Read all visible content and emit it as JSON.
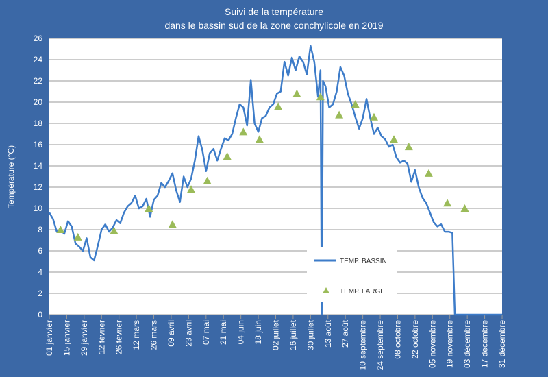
{
  "chart_data": {
    "type": "line",
    "title": "Suivi de la température",
    "subtitle": "dans le bassin sud de la zone conchylicole en 2019",
    "ylabel": "Température (°C)",
    "ylim": [
      0,
      26
    ],
    "yticks": [
      0,
      2,
      4,
      6,
      8,
      10,
      12,
      14,
      16,
      18,
      20,
      22,
      24,
      26
    ],
    "xlim": [
      0,
      364
    ],
    "xticks": [
      {
        "value": 0,
        "label": "01 janvier"
      },
      {
        "value": 14,
        "label": "15 janvier"
      },
      {
        "value": 28,
        "label": "29 janvier"
      },
      {
        "value": 42,
        "label": "12 février"
      },
      {
        "value": 56,
        "label": "26 février"
      },
      {
        "value": 70,
        "label": "12 mars"
      },
      {
        "value": 84,
        "label": "26 mars"
      },
      {
        "value": 98,
        "label": "09 avril"
      },
      {
        "value": 112,
        "label": "23 avril"
      },
      {
        "value": 126,
        "label": "07 mai"
      },
      {
        "value": 140,
        "label": "21 mai"
      },
      {
        "value": 154,
        "label": "04 juin"
      },
      {
        "value": 168,
        "label": "18 juin"
      },
      {
        "value": 182,
        "label": "02 juillet"
      },
      {
        "value": 196,
        "label": "16 juillet"
      },
      {
        "value": 210,
        "label": "30 juillet"
      },
      {
        "value": 224,
        "label": "13 août"
      },
      {
        "value": 238,
        "label": "27 août"
      },
      {
        "value": 252,
        "label": "10 septembre"
      },
      {
        "value": 266,
        "label": "24 septembre"
      },
      {
        "value": 280,
        "label": "08 octobre"
      },
      {
        "value": 294,
        "label": "22 octobre"
      },
      {
        "value": 308,
        "label": "05 novembre"
      },
      {
        "value": 322,
        "label": "19 novembre"
      },
      {
        "value": 336,
        "label": "03 décembre"
      },
      {
        "value": 350,
        "label": "17 décembre"
      },
      {
        "value": 364,
        "label": "31 décembre"
      }
    ],
    "grid": true,
    "legend": "bottom-center",
    "series": [
      {
        "name": "TEMP. BASSIN",
        "marker": "line",
        "color": "#3d7cc9",
        "x": [
          0,
          3,
          6,
          9,
          12,
          15,
          18,
          21,
          24,
          27,
          30,
          33,
          36,
          39,
          42,
          45,
          48,
          51,
          54,
          57,
          60,
          63,
          66,
          69,
          72,
          75,
          78,
          81,
          84,
          87,
          90,
          93,
          96,
          99,
          102,
          105,
          108,
          111,
          114,
          117,
          120,
          123,
          126,
          129,
          132,
          135,
          138,
          141,
          144,
          147,
          150,
          153,
          156,
          159,
          162,
          165,
          168,
          171,
          174,
          177,
          180,
          183,
          186,
          189,
          192,
          195,
          198,
          201,
          204,
          207,
          210,
          213,
          216,
          218,
          219,
          220,
          222,
          225,
          228,
          231,
          234,
          237,
          240,
          243,
          246,
          249,
          252,
          255,
          258,
          261,
          264,
          267,
          270,
          273,
          276,
          279,
          282,
          285,
          288,
          291,
          294,
          297,
          300,
          303,
          306,
          309,
          312,
          315,
          318,
          321,
          324,
          326,
          364
        ],
        "values": [
          9.6,
          9.0,
          7.8,
          8.0,
          7.6,
          8.8,
          8.3,
          6.7,
          6.4,
          6.0,
          7.2,
          5.4,
          5.1,
          6.5,
          8.0,
          8.5,
          7.8,
          8.2,
          8.9,
          8.6,
          9.6,
          10.2,
          10.5,
          11.2,
          10.0,
          10.2,
          10.9,
          9.2,
          10.8,
          11.2,
          12.4,
          12.0,
          12.6,
          13.3,
          11.7,
          10.6,
          13.0,
          12.0,
          12.8,
          14.5,
          16.8,
          15.5,
          13.5,
          15.2,
          15.6,
          14.5,
          15.6,
          16.6,
          16.4,
          17.0,
          18.5,
          19.8,
          19.5,
          17.8,
          22.1,
          18.0,
          17.2,
          18.5,
          18.7,
          19.5,
          19.8,
          20.8,
          21.0,
          23.8,
          22.5,
          24.2,
          23.0,
          24.3,
          23.8,
          22.6,
          25.3,
          23.8,
          20.5,
          23.0,
          0,
          22.0,
          21.5,
          19.5,
          19.8,
          21.0,
          23.3,
          22.5,
          20.8,
          19.8,
          18.6,
          17.5,
          18.5,
          20.3,
          18.5,
          17.0,
          17.6,
          16.8,
          16.5,
          15.8,
          16.0,
          14.8,
          14.3,
          14.5,
          14.2,
          12.5,
          13.6,
          12.0,
          11.0,
          10.5,
          9.6,
          8.7,
          8.3,
          8.5,
          7.8,
          7.8,
          7.7,
          0,
          0
        ]
      },
      {
        "name": "TEMP. LARGE",
        "marker": "triangle",
        "color": "#9bbb59",
        "x": [
          9,
          23,
          52,
          80,
          99,
          114,
          127,
          143,
          156,
          169,
          184,
          199,
          218,
          233,
          246,
          261,
          277,
          289,
          305,
          320,
          334
        ],
        "values": [
          8.0,
          7.3,
          7.9,
          10.0,
          8.5,
          11.8,
          12.6,
          14.9,
          17.2,
          16.5,
          19.6,
          20.8,
          20.5,
          18.8,
          19.8,
          18.6,
          16.5,
          15.8,
          13.3,
          10.5,
          10.0
        ]
      }
    ]
  }
}
